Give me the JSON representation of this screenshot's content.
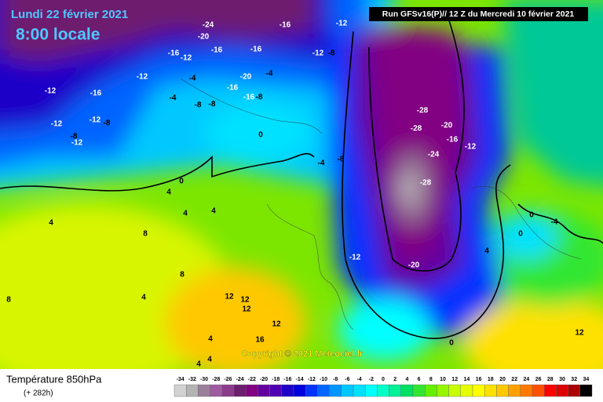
{
  "header": {
    "date": "Lundi 22 février 2021",
    "time": "8:00 locale",
    "run": "Run GFSv16(P)// 12 Z du Mercredi 10 février 2021"
  },
  "footer": {
    "title": "Température 850hPa",
    "lead": "(+ 282h)",
    "copyright": "Copyright © 2021 Meteociel.fr"
  },
  "scale": {
    "labels": [
      -34,
      -32,
      -30,
      -28,
      -26,
      -24,
      -22,
      -20,
      -18,
      -16,
      -14,
      -12,
      -10,
      -8,
      -6,
      -4,
      -2,
      0,
      2,
      4,
      6,
      8,
      10,
      12,
      14,
      16,
      18,
      20,
      22,
      24,
      26,
      28,
      30,
      32,
      34
    ],
    "colors": [
      "#d2d2d2",
      "#b4b4b4",
      "#9a7f9a",
      "#a05aa0",
      "#8a3c8a",
      "#6e1e6e",
      "#820082",
      "#6400a0",
      "#5000b4",
      "#1e00c8",
      "#0000dc",
      "#0032ff",
      "#0064ff",
      "#0096ff",
      "#00c8ff",
      "#00e1ff",
      "#00ffff",
      "#00ffc8",
      "#00f096",
      "#00e164",
      "#32e632",
      "#64f000",
      "#96f500",
      "#c8ff00",
      "#e6ff00",
      "#ffff00",
      "#ffe100",
      "#ffc800",
      "#ffa000",
      "#ff7800",
      "#ff5000",
      "#ff0000",
      "#dc0000",
      "#aa0000",
      "#000000"
    ]
  },
  "map_labels": [
    -24,
    -20,
    -16,
    -12,
    -16,
    -16,
    -16,
    -12,
    -12,
    -8,
    -12,
    -12,
    -16,
    -4,
    -4,
    -8,
    -20,
    -16,
    -16,
    -8,
    -4,
    -8,
    -12,
    -12,
    -8,
    -8,
    -12,
    0,
    -4,
    -8,
    -28,
    -28,
    -20,
    -16,
    -12,
    -24,
    -28,
    0,
    4,
    4,
    4,
    4,
    8,
    -12,
    -20,
    0,
    -4,
    0,
    4,
    8,
    8,
    4,
    12,
    12,
    12,
    12,
    16,
    4,
    0,
    12,
    4,
    4
  ]
}
